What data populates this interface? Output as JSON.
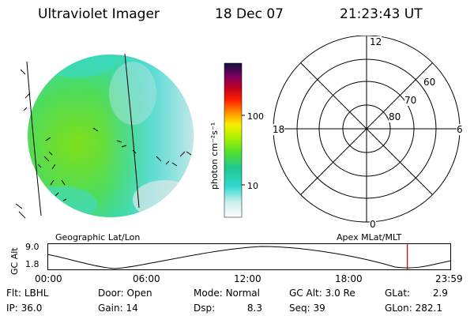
{
  "header": {
    "title": "Ultraviolet Imager",
    "date": "18 Dec 07",
    "time": "21:23:43 UT"
  },
  "colorbar": {
    "unit_label": "photon cm⁻²s⁻¹",
    "ticks": [
      "100",
      "10"
    ]
  },
  "polar": {
    "mlt_labels": {
      "top": "12",
      "left": "18",
      "right": "6",
      "bottom": "0"
    },
    "lat_labels": [
      "60",
      "70",
      "80"
    ]
  },
  "timeline": {
    "left_title": "Geographic Lat/Lon",
    "right_title": "Apex MLat/MLT",
    "ylabel": "GC Alt",
    "y_ticks": [
      "9.0",
      "1.8"
    ],
    "x_ticks": [
      "00:00",
      "06:00",
      "12:00",
      "18:00",
      "23:59"
    ],
    "current_marker_hours": 21.4,
    "marker_color": "#cc0000"
  },
  "status": {
    "row1": [
      {
        "label": "Flt:",
        "value": "LBHL"
      },
      {
        "label": "Door:",
        "value": "Open"
      },
      {
        "label": "Mode:",
        "value": "Normal"
      },
      {
        "label": "GC Alt:",
        "value": "3.0 Re"
      },
      {
        "label": "GLat:",
        "value": "2.9"
      }
    ],
    "row2": [
      {
        "label": "IP:",
        "value": "36.0"
      },
      {
        "label": "Gain:",
        "value": "14"
      },
      {
        "label": "Dsp:",
        "value": "8.3"
      },
      {
        "label": "Seq:",
        "value": "39"
      },
      {
        "label": "GLon:",
        "value": "282.1"
      }
    ]
  }
}
